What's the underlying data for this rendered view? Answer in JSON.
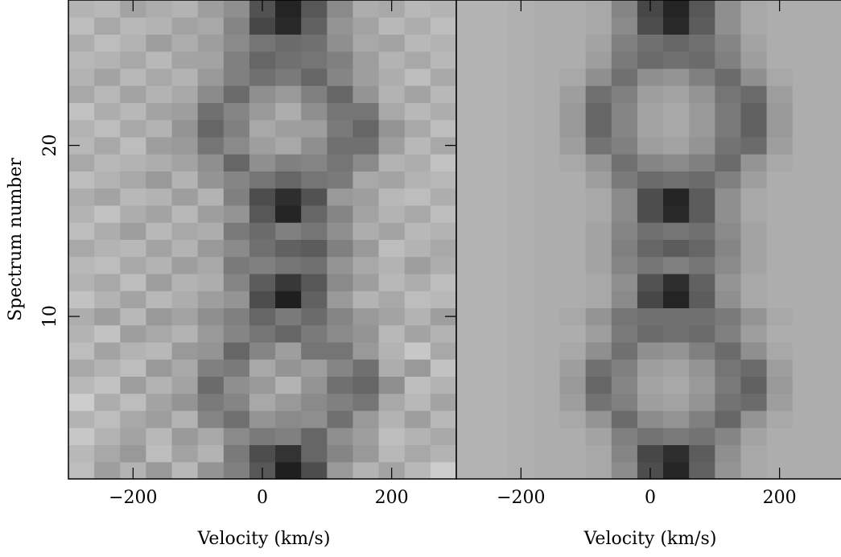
{
  "chart_data": [
    {
      "type": "heatmap",
      "xlabel": "Velocity (km/s)",
      "ylabel": "Spectrum number",
      "x": [
        -280,
        -240,
        -200,
        -160,
        -120,
        -80,
        -40,
        0,
        40,
        80,
        120,
        160,
        200,
        240,
        280
      ],
      "y": [
        1,
        2,
        3,
        4,
        5,
        6,
        7,
        8,
        9,
        10,
        11,
        12,
        13,
        14,
        15,
        16,
        17,
        18,
        19,
        20,
        21,
        22,
        23,
        24,
        25,
        26,
        27,
        28
      ],
      "xlim": [
        -300,
        300
      ],
      "ylim": [
        0.5,
        28.5
      ],
      "xticks": [
        {
          "value": -200,
          "label": "−200"
        },
        0,
        200
      ],
      "yticks": [
        10,
        20
      ],
      "z": [
        [
          74,
          62,
          70,
          60,
          72,
          58,
          50,
          34,
          12,
          30,
          60,
          70,
          64,
          72,
          80
        ],
        [
          72,
          66,
          60,
          74,
          64,
          70,
          48,
          30,
          20,
          40,
          52,
          60,
          72,
          66,
          70
        ],
        [
          78,
          70,
          64,
          72,
          60,
          66,
          54,
          48,
          50,
          40,
          56,
          62,
          74,
          70,
          66
        ],
        [
          70,
          74,
          66,
          62,
          70,
          52,
          44,
          58,
          54,
          56,
          44,
          60,
          70,
          62,
          72
        ],
        [
          80,
          68,
          74,
          64,
          58,
          48,
          52,
          66,
          60,
          54,
          50,
          46,
          66,
          72,
          64
        ],
        [
          72,
          76,
          62,
          70,
          64,
          42,
          56,
          60,
          70,
          58,
          44,
          40,
          56,
          74,
          70
        ],
        [
          66,
          70,
          74,
          60,
          66,
          50,
          48,
          66,
          58,
          62,
          52,
          44,
          68,
          60,
          76
        ],
        [
          74,
          64,
          70,
          72,
          60,
          58,
          40,
          52,
          62,
          46,
          46,
          60,
          70,
          78,
          66
        ],
        [
          70,
          76,
          62,
          66,
          70,
          60,
          52,
          46,
          40,
          48,
          54,
          58,
          72,
          64,
          70
        ],
        [
          68,
          62,
          72,
          60,
          64,
          56,
          50,
          40,
          48,
          42,
          52,
          60,
          64,
          70,
          62
        ],
        [
          76,
          70,
          64,
          72,
          68,
          62,
          58,
          30,
          12,
          38,
          60,
          70,
          66,
          74,
          72
        ],
        [
          70,
          66,
          74,
          62,
          70,
          68,
          52,
          36,
          22,
          34,
          54,
          62,
          72,
          68,
          74
        ],
        [
          72,
          74,
          66,
          70,
          62,
          66,
          48,
          50,
          46,
          44,
          58,
          66,
          70,
          62,
          68
        ],
        [
          66,
          70,
          72,
          64,
          70,
          60,
          54,
          44,
          38,
          36,
          50,
          60,
          74,
          70,
          66
        ],
        [
          74,
          68,
          62,
          72,
          66,
          68,
          48,
          42,
          50,
          46,
          56,
          68,
          64,
          72,
          70
        ],
        [
          70,
          76,
          68,
          64,
          72,
          62,
          58,
          34,
          14,
          40,
          52,
          64,
          70,
          66,
          74
        ],
        [
          68,
          64,
          72,
          70,
          62,
          70,
          50,
          30,
          18,
          32,
          60,
          62,
          72,
          74,
          68
        ],
        [
          74,
          70,
          66,
          60,
          70,
          58,
          52,
          46,
          40,
          46,
          48,
          66,
          64,
          70,
          72
        ],
        [
          66,
          72,
          70,
          68,
          64,
          56,
          40,
          56,
          50,
          52,
          46,
          54,
          70,
          68,
          76
        ],
        [
          72,
          66,
          74,
          62,
          60,
          46,
          54,
          62,
          66,
          56,
          44,
          44,
          62,
          72,
          66
        ],
        [
          70,
          74,
          66,
          70,
          58,
          40,
          50,
          66,
          62,
          62,
          48,
          40,
          58,
          66,
          74
        ],
        [
          76,
          68,
          72,
          64,
          62,
          44,
          52,
          60,
          68,
          56,
          46,
          46,
          66,
          72,
          68
        ],
        [
          66,
          72,
          64,
          70,
          66,
          54,
          42,
          56,
          60,
          50,
          40,
          58,
          70,
          64,
          72
        ],
        [
          70,
          64,
          72,
          66,
          70,
          60,
          50,
          44,
          48,
          40,
          52,
          62,
          68,
          74,
          66
        ],
        [
          72,
          70,
          66,
          72,
          64,
          64,
          50,
          40,
          44,
          46,
          50,
          62,
          70,
          66,
          72
        ],
        [
          68,
          74,
          70,
          62,
          68,
          62,
          54,
          46,
          42,
          44,
          56,
          66,
          64,
          72,
          70
        ],
        [
          74,
          66,
          72,
          70,
          64,
          66,
          52,
          28,
          16,
          38,
          58,
          64,
          72,
          68,
          74
        ],
        [
          70,
          72,
          64,
          68,
          70,
          62,
          56,
          32,
          14,
          34,
          54,
          68,
          66,
          72,
          70
        ]
      ]
    },
    {
      "type": "heatmap",
      "xlabel": "Velocity (km/s)",
      "x": [
        -280,
        -240,
        -200,
        -160,
        -120,
        -80,
        -40,
        0,
        40,
        80,
        120,
        160,
        200,
        240,
        280
      ],
      "y": [
        1,
        2,
        3,
        4,
        5,
        6,
        7,
        8,
        9,
        10,
        11,
        12,
        13,
        14,
        15,
        16,
        17,
        18,
        19,
        20,
        21,
        22,
        23,
        24,
        25,
        26,
        27,
        28
      ],
      "xlim": [
        -300,
        300
      ],
      "ylim": [
        0.5,
        28.5
      ],
      "xticks": [
        {
          "value": -200,
          "label": "−200"
        },
        0,
        200
      ],
      "z": [
        [
          70,
          70,
          69,
          68,
          68,
          66,
          55,
          30,
          15,
          38,
          58,
          66,
          68,
          68,
          68
        ],
        [
          70,
          70,
          69,
          68,
          68,
          66,
          52,
          28,
          18,
          36,
          56,
          66,
          68,
          68,
          68
        ],
        [
          70,
          70,
          69,
          68,
          68,
          64,
          50,
          45,
          48,
          45,
          52,
          64,
          68,
          68,
          68
        ],
        [
          70,
          70,
          69,
          68,
          66,
          58,
          42,
          55,
          58,
          50,
          40,
          58,
          66,
          68,
          68
        ],
        [
          70,
          70,
          69,
          68,
          62,
          45,
          50,
          62,
          64,
          58,
          45,
          42,
          62,
          68,
          68
        ],
        [
          70,
          70,
          69,
          68,
          60,
          40,
          52,
          64,
          66,
          60,
          48,
          38,
          60,
          68,
          68
        ],
        [
          70,
          70,
          69,
          68,
          62,
          44,
          50,
          62,
          64,
          58,
          46,
          42,
          62,
          68,
          68
        ],
        [
          70,
          70,
          69,
          68,
          66,
          56,
          44,
          56,
          58,
          50,
          42,
          56,
          66,
          68,
          68
        ],
        [
          70,
          70,
          69,
          68,
          68,
          62,
          48,
          42,
          44,
          42,
          50,
          62,
          68,
          68,
          68
        ],
        [
          70,
          70,
          69,
          68,
          66,
          58,
          46,
          44,
          44,
          44,
          48,
          58,
          66,
          68,
          68
        ],
        [
          70,
          70,
          69,
          68,
          68,
          66,
          54,
          28,
          14,
          36,
          56,
          66,
          68,
          68,
          68
        ],
        [
          70,
          70,
          69,
          68,
          68,
          66,
          56,
          32,
          18,
          38,
          58,
          66,
          68,
          68,
          68
        ],
        [
          70,
          70,
          69,
          68,
          68,
          64,
          52,
          46,
          50,
          46,
          54,
          64,
          68,
          68,
          68
        ],
        [
          70,
          70,
          69,
          68,
          68,
          64,
          50,
          40,
          36,
          40,
          52,
          64,
          68,
          68,
          68
        ],
        [
          70,
          70,
          69,
          68,
          68,
          64,
          52,
          44,
          46,
          44,
          54,
          64,
          68,
          68,
          68
        ],
        [
          70,
          70,
          69,
          68,
          68,
          66,
          54,
          30,
          16,
          36,
          56,
          66,
          68,
          68,
          68
        ],
        [
          70,
          70,
          69,
          68,
          68,
          66,
          54,
          30,
          14,
          36,
          56,
          66,
          68,
          68,
          68
        ],
        [
          70,
          70,
          69,
          68,
          68,
          62,
          48,
          42,
          44,
          42,
          50,
          62,
          68,
          68,
          68
        ],
        [
          70,
          70,
          69,
          68,
          66,
          58,
          44,
          52,
          54,
          50,
          42,
          58,
          66,
          68,
          68
        ],
        [
          70,
          70,
          69,
          68,
          62,
          45,
          50,
          62,
          64,
          58,
          45,
          42,
          62,
          68,
          68
        ],
        [
          70,
          70,
          69,
          68,
          60,
          40,
          52,
          64,
          66,
          60,
          48,
          38,
          60,
          68,
          68
        ],
        [
          70,
          70,
          69,
          68,
          60,
          40,
          52,
          64,
          66,
          60,
          48,
          38,
          60,
          68,
          68
        ],
        [
          70,
          70,
          69,
          68,
          62,
          44,
          50,
          62,
          64,
          58,
          46,
          42,
          62,
          68,
          68
        ],
        [
          70,
          70,
          69,
          68,
          66,
          56,
          44,
          56,
          58,
          50,
          42,
          56,
          66,
          68,
          68
        ],
        [
          70,
          70,
          69,
          68,
          68,
          62,
          48,
          42,
          44,
          42,
          50,
          62,
          68,
          68,
          68
        ],
        [
          70,
          70,
          69,
          68,
          68,
          64,
          50,
          44,
          40,
          44,
          52,
          64,
          68,
          68,
          68
        ],
        [
          70,
          70,
          69,
          68,
          68,
          66,
          54,
          30,
          16,
          36,
          56,
          66,
          68,
          68,
          68
        ],
        [
          70,
          70,
          69,
          68,
          68,
          66,
          52,
          28,
          14,
          34,
          56,
          66,
          68,
          68,
          68
        ]
      ]
    }
  ]
}
